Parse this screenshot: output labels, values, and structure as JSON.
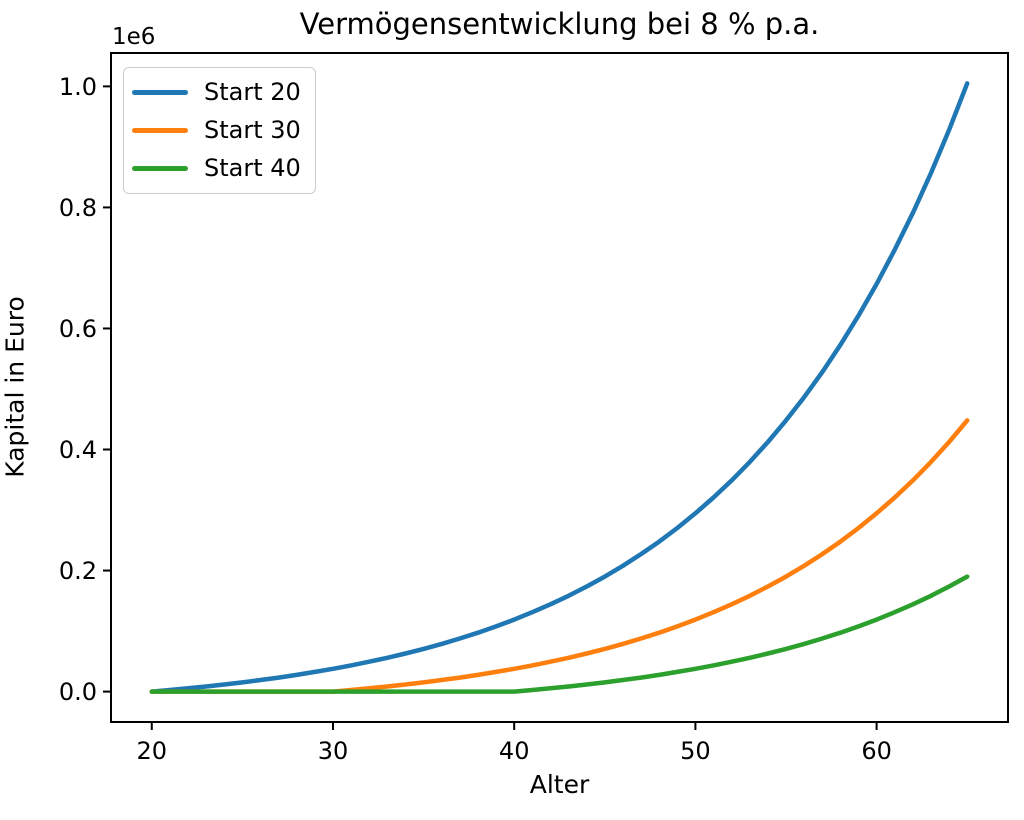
{
  "colors": {
    "background": "#ffffff",
    "spine": "#000000",
    "tick": "#000000",
    "text": "#000000",
    "legend_border": "#cccccc"
  },
  "chart_data": {
    "type": "line",
    "title": "Vermögensentwicklung bei 8 % p.a.",
    "xlabel": "Alter",
    "ylabel": "Kapital in Euro",
    "y_offset_text": "1e6",
    "grid": false,
    "legend_position": "upper left",
    "xlim": [
      17.75,
      67.25
    ],
    "ylim": [
      -50246,
      1055161
    ],
    "xticks": [
      {
        "v": 20,
        "label": "20"
      },
      {
        "v": 30,
        "label": "30"
      },
      {
        "v": 40,
        "label": "40"
      },
      {
        "v": 50,
        "label": "50"
      },
      {
        "v": 60,
        "label": "60"
      }
    ],
    "yticks": [
      {
        "v": 0,
        "label": "0.0"
      },
      {
        "v": 200000,
        "label": "0.2"
      },
      {
        "v": 400000,
        "label": "0.4"
      },
      {
        "v": 600000,
        "label": "0.6"
      },
      {
        "v": 800000,
        "label": "0.8"
      },
      {
        "v": 1000000,
        "label": "1.0"
      }
    ],
    "x": [
      20,
      21,
      22,
      23,
      24,
      25,
      26,
      27,
      28,
      29,
      30,
      31,
      32,
      33,
      34,
      35,
      36,
      37,
      38,
      39,
      40,
      41,
      42,
      43,
      44,
      45,
      46,
      47,
      48,
      49,
      50,
      51,
      52,
      53,
      54,
      55,
      56,
      57,
      58,
      59,
      60,
      61,
      62,
      63,
      64,
      65
    ],
    "series": [
      {
        "name": "Start 20",
        "color": "#1f77b4",
        "values": [
          0,
          2600,
          5408,
          8441,
          11716,
          15253,
          19073,
          23199,
          27655,
          32468,
          37665,
          43278,
          49341,
          55888,
          62959,
          70595,
          78843,
          87751,
          97371,
          107760,
          118981,
          131100,
          144188,
          158323,
          173588,
          190075,
          207881,
          227112,
          247881,
          270311,
          294536,
          320699,
          348955,
          379472,
          412429,
          448024,
          486466,
          527983,
          572821,
          621247,
          673547,
          730031,
          791033,
          856916,
          928069,
          1004915
        ]
      },
      {
        "name": "Start 30",
        "color": "#ff7f0e",
        "values": [
          0,
          0,
          0,
          0,
          0,
          0,
          0,
          0,
          0,
          0,
          0,
          2600,
          5408,
          8441,
          11716,
          15253,
          19073,
          23199,
          27655,
          32468,
          37665,
          43278,
          49341,
          55888,
          62959,
          70595,
          78843,
          87751,
          97371,
          107760,
          118981,
          131100,
          144188,
          158323,
          173588,
          190075,
          207881,
          227112,
          247881,
          270311,
          294536,
          320699,
          348955,
          379472,
          412429,
          448024
        ]
      },
      {
        "name": "Start 40",
        "color": "#2ca02c",
        "values": [
          0,
          0,
          0,
          0,
          0,
          0,
          0,
          0,
          0,
          0,
          0,
          0,
          0,
          0,
          0,
          0,
          0,
          0,
          0,
          0,
          0,
          2600,
          5408,
          8441,
          11716,
          15253,
          19073,
          23199,
          27655,
          32468,
          37665,
          43278,
          49341,
          55888,
          62959,
          70595,
          78843,
          87751,
          97371,
          107760,
          118981,
          131100,
          144188,
          158323,
          173588,
          190075
        ]
      }
    ]
  }
}
